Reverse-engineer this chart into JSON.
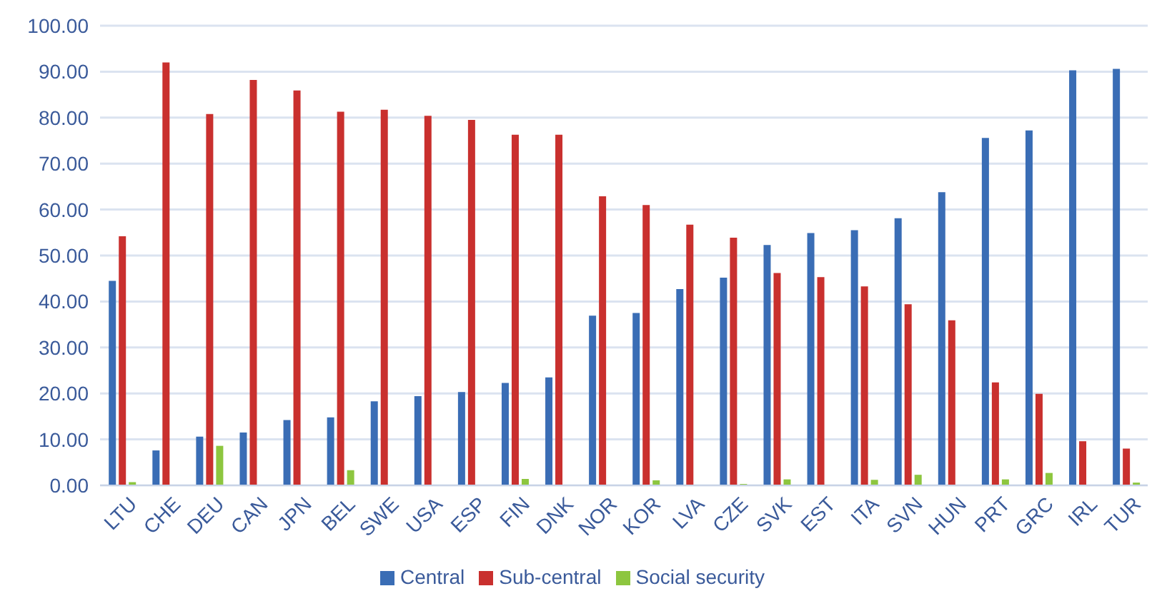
{
  "chart_data": {
    "type": "bar",
    "categories": [
      "LTU",
      "CHE",
      "DEU",
      "CAN",
      "JPN",
      "BEL",
      "SWE",
      "USA",
      "ESP",
      "FIN",
      "DNK",
      "NOR",
      "KOR",
      "LVA",
      "CZE",
      "SVK",
      "EST",
      "ITA",
      "SVN",
      "HUN",
      "PRT",
      "GRC",
      "IRL",
      "TUR"
    ],
    "series": [
      {
        "name": "Central",
        "color": "#3a6db5",
        "values": [
          44.5,
          7.6,
          10.6,
          11.5,
          14.2,
          14.8,
          18.3,
          19.4,
          20.3,
          22.3,
          23.5,
          36.9,
          37.5,
          42.7,
          45.2,
          52.3,
          54.9,
          55.5,
          58.1,
          63.8,
          75.6,
          77.2,
          90.3,
          90.6
        ]
      },
      {
        "name": "Sub-central",
        "color": "#c9302e",
        "values": [
          54.2,
          92.0,
          80.8,
          88.2,
          85.9,
          81.3,
          81.7,
          80.4,
          79.5,
          76.3,
          76.3,
          62.9,
          61.0,
          56.7,
          53.9,
          46.2,
          45.3,
          43.3,
          39.4,
          35.9,
          22.4,
          19.9,
          9.6,
          8.0
        ]
      },
      {
        "name": "Social security",
        "color": "#8dc63f",
        "values": [
          0.7,
          null,
          8.6,
          null,
          null,
          3.3,
          null,
          null,
          null,
          1.4,
          null,
          null,
          1.1,
          null,
          0.3,
          1.3,
          null,
          1.2,
          2.3,
          null,
          1.3,
          2.7,
          null,
          0.6
        ]
      }
    ],
    "ylim": [
      0,
      100
    ],
    "yticks": [
      {
        "value": 0,
        "label": "0.00"
      },
      {
        "value": 10,
        "label": "10.00"
      },
      {
        "value": 20,
        "label": "20.00"
      },
      {
        "value": 30,
        "label": "30.00"
      },
      {
        "value": 40,
        "label": "40.00"
      },
      {
        "value": 50,
        "label": "50.00"
      },
      {
        "value": 60,
        "label": "60.00"
      },
      {
        "value": 70,
        "label": "70.00"
      },
      {
        "value": 80,
        "label": "80.00"
      },
      {
        "value": 90,
        "label": "90.00"
      },
      {
        "value": 100,
        "label": "100.00"
      }
    ],
    "grid": "y",
    "legend": "bottom"
  }
}
